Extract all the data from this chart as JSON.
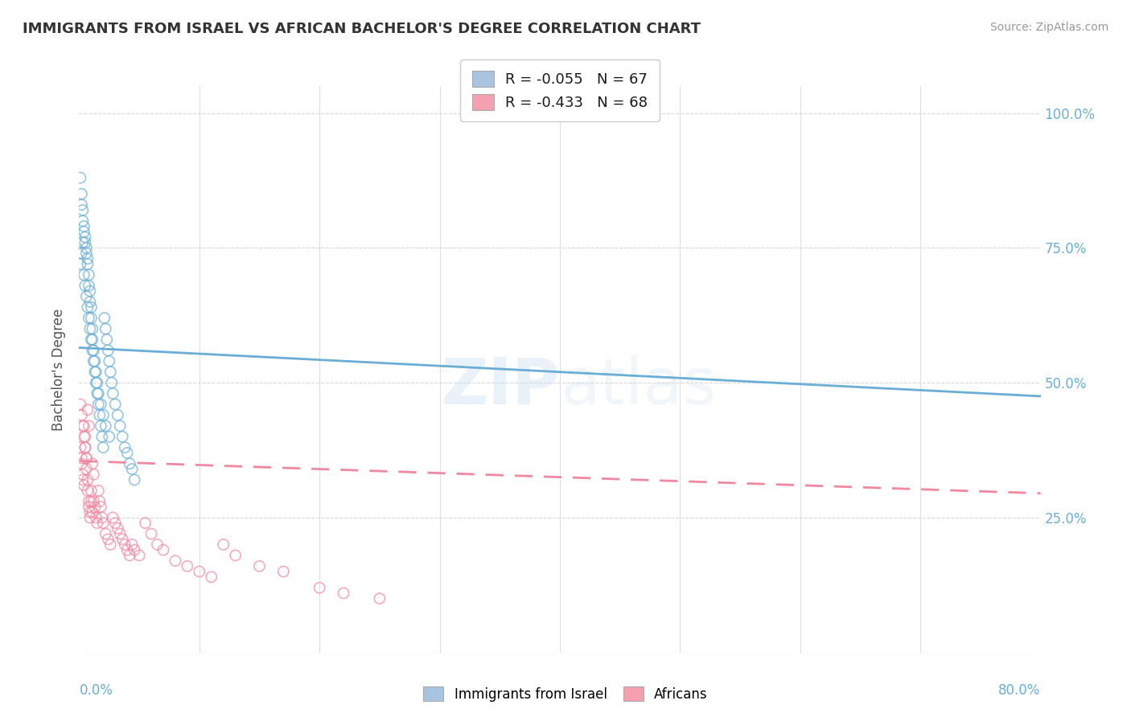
{
  "title": "IMMIGRANTS FROM ISRAEL VS AFRICAN BACHELOR'S DEGREE CORRELATION CHART",
  "source_text": "Source: ZipAtlas.com",
  "ylabel": "Bachelor's Degree",
  "right_yticks": [
    "100.0%",
    "75.0%",
    "50.0%",
    "25.0%"
  ],
  "right_ytick_vals": [
    1.0,
    0.75,
    0.5,
    0.25
  ],
  "legend_entries": [
    {
      "label_r": "R = -0.055",
      "label_n": "N = 67",
      "color": "#a8c4e0"
    },
    {
      "label_r": "R = -0.433",
      "label_n": "N = 68",
      "color": "#f4a0b0"
    }
  ],
  "legend_bottom": [
    "Immigrants from Israel",
    "Africans"
  ],
  "blue_color": "#6aaed6",
  "pink_color": "#f088a0",
  "blue_fill": "#a8c4e0",
  "pink_fill": "#f4a0b0",
  "watermark": "ZIPAtlas",
  "israel_x": [
    0.001,
    0.002,
    0.002,
    0.003,
    0.003,
    0.004,
    0.004,
    0.005,
    0.005,
    0.006,
    0.006,
    0.007,
    0.007,
    0.008,
    0.008,
    0.009,
    0.009,
    0.01,
    0.01,
    0.011,
    0.011,
    0.012,
    0.013,
    0.014,
    0.015,
    0.016,
    0.018,
    0.02,
    0.022,
    0.025,
    0.001,
    0.002,
    0.003,
    0.004,
    0.005,
    0.006,
    0.007,
    0.008,
    0.009,
    0.01,
    0.011,
    0.012,
    0.013,
    0.014,
    0.015,
    0.016,
    0.017,
    0.018,
    0.019,
    0.02,
    0.021,
    0.022,
    0.023,
    0.024,
    0.025,
    0.026,
    0.027,
    0.028,
    0.03,
    0.032,
    0.034,
    0.036,
    0.038,
    0.04,
    0.042,
    0.044,
    0.046
  ],
  "israel_y": [
    0.88,
    0.85,
    0.83,
    0.82,
    0.8,
    0.79,
    0.78,
    0.77,
    0.76,
    0.75,
    0.74,
    0.73,
    0.72,
    0.7,
    0.68,
    0.67,
    0.65,
    0.64,
    0.62,
    0.6,
    0.58,
    0.56,
    0.54,
    0.52,
    0.5,
    0.48,
    0.46,
    0.44,
    0.42,
    0.4,
    0.72,
    0.74,
    0.76,
    0.7,
    0.68,
    0.66,
    0.64,
    0.62,
    0.6,
    0.58,
    0.56,
    0.54,
    0.52,
    0.5,
    0.48,
    0.46,
    0.44,
    0.42,
    0.4,
    0.38,
    0.62,
    0.6,
    0.58,
    0.56,
    0.54,
    0.52,
    0.5,
    0.48,
    0.46,
    0.44,
    0.42,
    0.4,
    0.38,
    0.37,
    0.35,
    0.34,
    0.32
  ],
  "african_x": [
    0.001,
    0.002,
    0.002,
    0.003,
    0.003,
    0.004,
    0.004,
    0.005,
    0.005,
    0.006,
    0.006,
    0.007,
    0.007,
    0.008,
    0.008,
    0.009,
    0.009,
    0.01,
    0.01,
    0.011,
    0.011,
    0.012,
    0.012,
    0.013,
    0.014,
    0.015,
    0.016,
    0.017,
    0.018,
    0.019,
    0.02,
    0.022,
    0.024,
    0.026,
    0.028,
    0.03,
    0.032,
    0.034,
    0.036,
    0.038,
    0.04,
    0.042,
    0.044,
    0.046,
    0.05,
    0.055,
    0.06,
    0.065,
    0.07,
    0.08,
    0.09,
    0.1,
    0.11,
    0.12,
    0.13,
    0.15,
    0.17,
    0.2,
    0.22,
    0.25,
    0.001,
    0.002,
    0.003,
    0.004,
    0.005,
    0.006,
    0.007,
    0.008
  ],
  "african_y": [
    0.38,
    0.36,
    0.35,
    0.33,
    0.32,
    0.31,
    0.42,
    0.4,
    0.38,
    0.36,
    0.34,
    0.32,
    0.3,
    0.28,
    0.27,
    0.26,
    0.25,
    0.3,
    0.28,
    0.26,
    0.35,
    0.33,
    0.28,
    0.27,
    0.25,
    0.24,
    0.3,
    0.28,
    0.27,
    0.25,
    0.24,
    0.22,
    0.21,
    0.2,
    0.25,
    0.24,
    0.23,
    0.22,
    0.21,
    0.2,
    0.19,
    0.18,
    0.2,
    0.19,
    0.18,
    0.24,
    0.22,
    0.2,
    0.19,
    0.17,
    0.16,
    0.15,
    0.14,
    0.2,
    0.18,
    0.16,
    0.15,
    0.12,
    0.11,
    0.1,
    0.46,
    0.44,
    0.42,
    0.4,
    0.38,
    0.36,
    0.45,
    0.42
  ],
  "xlim": [
    0.0,
    0.8
  ],
  "ylim": [
    0.0,
    1.05
  ],
  "blue_line_x": [
    0.0,
    0.8
  ],
  "blue_line_y": [
    0.565,
    0.475
  ],
  "pink_line_x": [
    0.0,
    0.8
  ],
  "pink_line_y": [
    0.355,
    0.295
  ],
  "bg_color": "#ffffff",
  "grid_color": "#d8d8d8"
}
